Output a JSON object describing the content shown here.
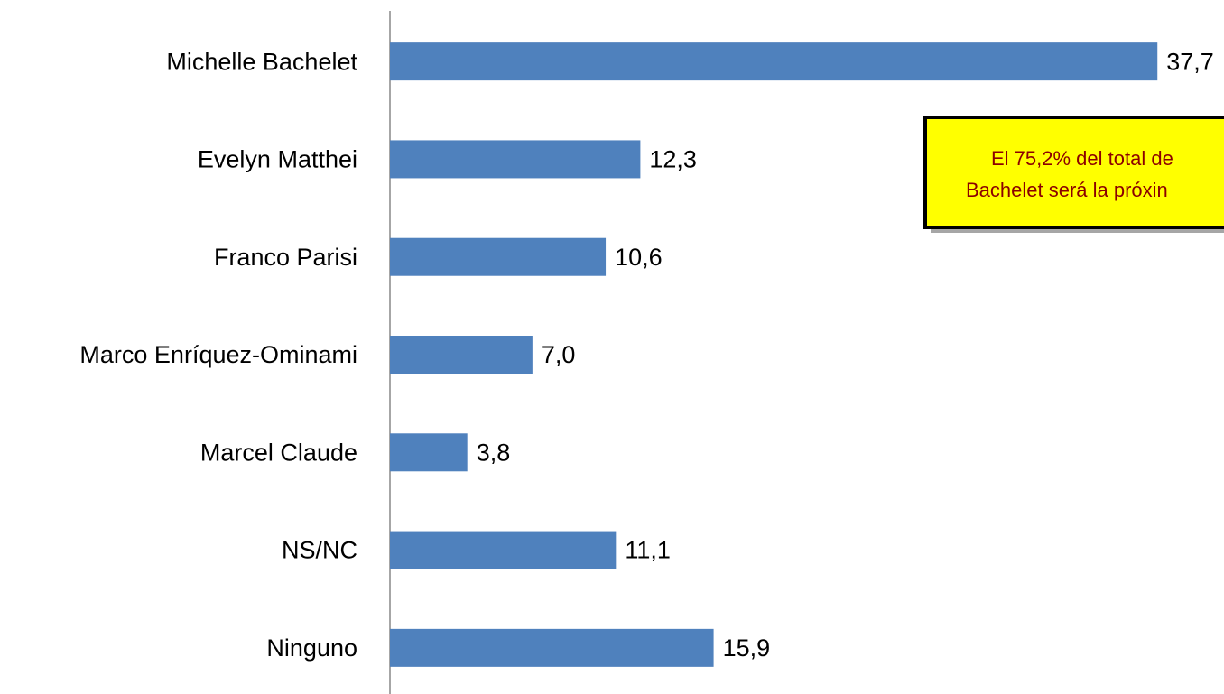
{
  "chart_data": {
    "type": "barh",
    "categories": [
      "Michelle Bachelet",
      "Evelyn Matthei",
      "Franco Parisi",
      "Marco Enríquez-Ominami",
      "Marcel Claude",
      "NS/NC",
      "Ninguno"
    ],
    "values": [
      37.7,
      12.3,
      10.6,
      7.0,
      3.8,
      11.1,
      15.9
    ],
    "value_labels": [
      "37,7",
      "12,3",
      "10,6",
      "7,0",
      "3,8",
      "11,1",
      "15,9"
    ],
    "color": "#4f81bd",
    "xlim": [
      0,
      38
    ],
    "annotation": [
      "El 75,2% del total de",
      "Bachelet será la próxin"
    ]
  }
}
